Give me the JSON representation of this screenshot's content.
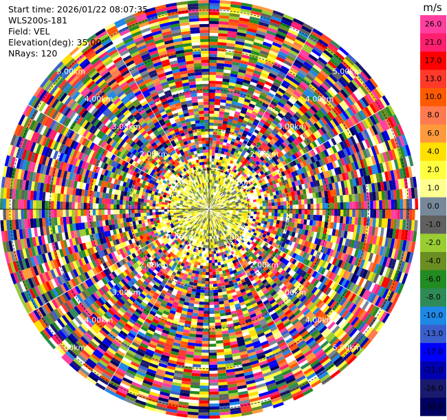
{
  "header": {
    "start_time": "Start time: 2026/01/22 08:07:35",
    "instrument": "WLS200s-181",
    "field": "Field: VEL",
    "elevation": "Elevation(deg): 35.00",
    "nrays": "NRays: 120"
  },
  "chart_data": {
    "type": "heatmap",
    "projection": "polar-ppi",
    "field": "VEL",
    "units": "m/s",
    "n_rays": 120,
    "elevation_deg": 35.0,
    "range_rings_km": [
      1.0,
      2.0,
      3.0,
      4.0,
      5.0
    ],
    "range_ring_labels": [
      "1.00km",
      "2.00km",
      "3.00km",
      "4.00km",
      "5.00km"
    ],
    "max_range_km": 5.25,
    "spoke_count": 12,
    "colorbar": {
      "label": "m/s",
      "ticks": [
        "26.0",
        "21.0",
        "17.0",
        "13.0",
        "10.0",
        "8.0",
        "6.0",
        "4.0",
        "2.0",
        "1.0",
        "0.0",
        "-1.0",
        "-2.0",
        "-4.0",
        "-6.0",
        "-8.0",
        "-10.0",
        "-13.0",
        "-17.0",
        "-21.0",
        "-26.0",
        "-30.0"
      ],
      "colors": [
        "#ff3fa0",
        "#ff1f6f",
        "#ff0000",
        "#ff3a2a",
        "#ff5a00",
        "#ff7a50",
        "#ff9a3c",
        "#ffe000",
        "#ffff40",
        "#ffff90",
        "#778899",
        "#606060",
        "#9acd32",
        "#6b8e23",
        "#228b22",
        "#2e8b57",
        "#1e88e5",
        "#3a5fcd",
        "#0000ff",
        "#0000b0",
        "#1a1a6e",
        "#000060"
      ]
    }
  }
}
